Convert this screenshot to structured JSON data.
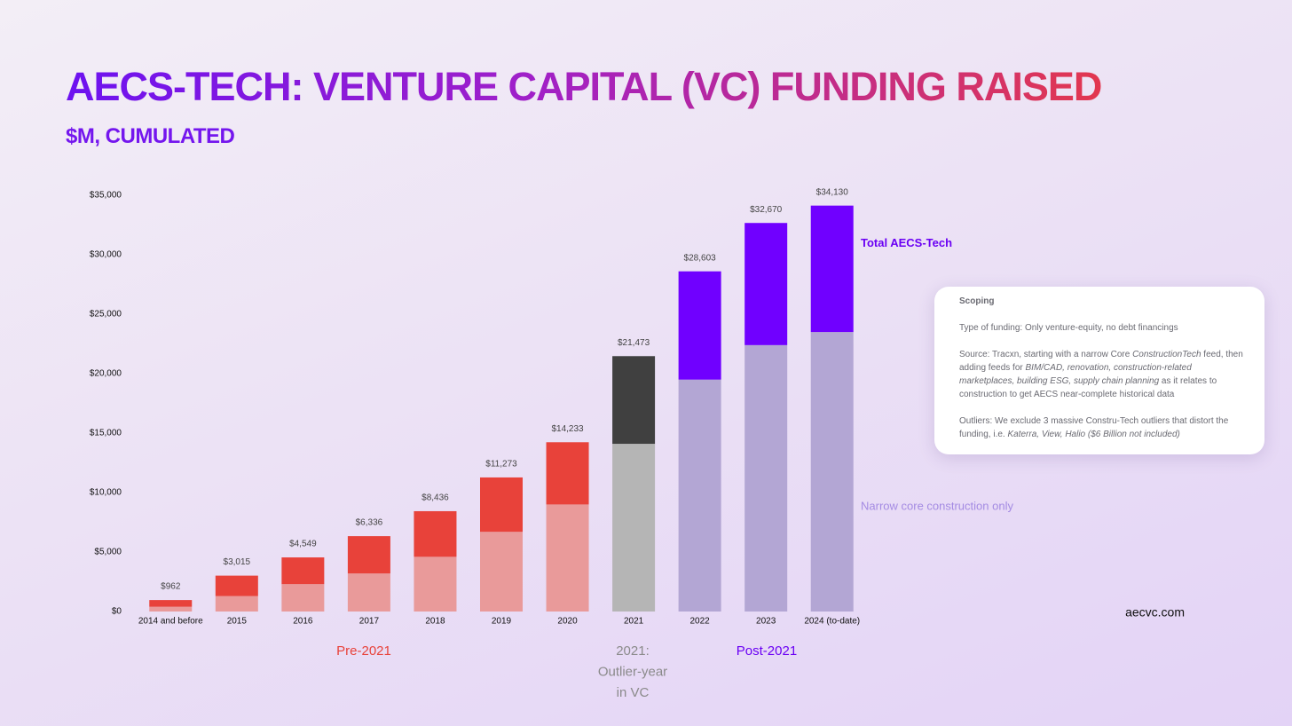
{
  "chart_data": {
    "type": "stacked_bar",
    "title": "AECS-TECH: VENTURE CAPITAL (VC) FUNDING RAISED",
    "subtitle": "$M, CUMULATED",
    "categories": [
      "2014 and before",
      "2015",
      "2016",
      "2017",
      "2018",
      "2019",
      "2020",
      "2021",
      "2022",
      "2023",
      "2024 (to-date)"
    ],
    "series": [
      {
        "name": "Narrow core construction only",
        "color": "#a48be3",
        "colors": [
          "#e99a9a",
          "#e99a9a",
          "#e99a9a",
          "#e99a9a",
          "#e99a9a",
          "#e99a9a",
          "#e99a9a",
          "#b5b5b5",
          "#b3a6d4",
          "#b3a6d4",
          "#b3a6d4"
        ],
        "values": [
          400,
          1300,
          2300,
          3200,
          4600,
          6700,
          9000,
          14100,
          19500,
          22400,
          23500
        ]
      },
      {
        "name": "Total AECS-Tech",
        "color": "#6a00f4",
        "colors": [
          "#e8423a",
          "#e8423a",
          "#e8423a",
          "#e8423a",
          "#e8423a",
          "#e8423a",
          "#e8423a",
          "#404040",
          "#7000ff",
          "#7000ff",
          "#7000ff"
        ],
        "values": [
          562,
          1715,
          2249,
          3136,
          3836,
          4573,
          5233,
          7373,
          9103,
          10270,
          10630
        ]
      }
    ],
    "totals": {
      "values": [
        962,
        3015,
        4549,
        6336,
        8436,
        11273,
        14233,
        21473,
        28603,
        32670,
        34130
      ],
      "value_labels": [
        "$962",
        "$3,015",
        "$4,549",
        "$6,336",
        "$8,436",
        "$11,273",
        "$14,233",
        "$21,473",
        "$28,603",
        "$32,670",
        "$34,130"
      ]
    },
    "ylim": [
      0,
      35000
    ],
    "yticks": [
      {
        "value": 0,
        "label": "$0"
      },
      {
        "value": 5000,
        "label": "$5,000"
      },
      {
        "value": 10000,
        "label": "$10,000"
      },
      {
        "value": 15000,
        "label": "$15,000"
      },
      {
        "value": 20000,
        "label": "$20,000"
      },
      {
        "value": 25000,
        "label": "$25,000"
      },
      {
        "value": 30000,
        "label": "$30,000"
      },
      {
        "value": 35000,
        "label": "$35,000"
      }
    ],
    "grid": false,
    "groups": [
      {
        "lines": [
          "Pre-2021"
        ],
        "color": "#e8423a"
      },
      {
        "lines": [
          "2021:",
          "Outlier-year",
          "in VC"
        ],
        "color": "#8a8a8a"
      },
      {
        "lines": [
          "Post-2021"
        ],
        "color": "#6a00f4"
      }
    ],
    "scoping": {
      "heading": "Scoping",
      "paragraphs": [
        [
          "Type of funding: Only venture-equity, no debt financings"
        ],
        [
          "Source: Tracxn, starting with a narrow Core ",
          "ConstructionTech",
          " feed, then adding feeds for ",
          "BIM/CAD, renovation, construction-related marketplaces, building ESG, supply chain planning",
          " as it relates to construction to get AECS near-complete historical data"
        ],
        [
          "Outliers: We exclude 3 massive Constru-Tech outliers that distort the funding, i.e. ",
          "Katerra, View, Halio ($6 Billion not included)"
        ]
      ]
    },
    "source": "aecvc.com"
  }
}
